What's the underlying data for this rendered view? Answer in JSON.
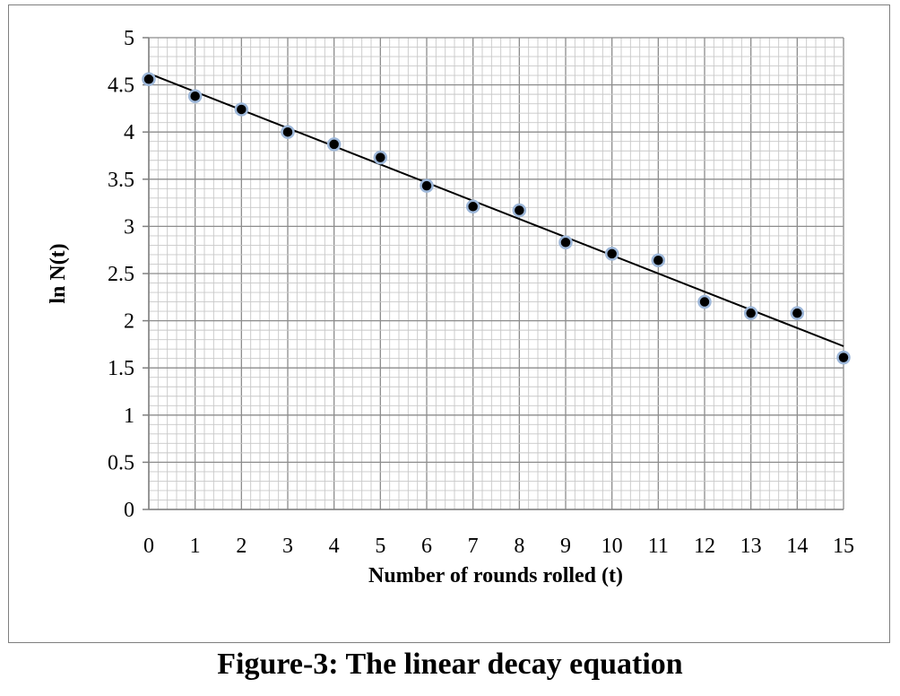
{
  "caption": "Figure-3: The linear decay equation",
  "chart_data": {
    "type": "scatter",
    "xlabel": "Number of rounds rolled (t)",
    "ylabel": "ln N(t)",
    "xlim": [
      0,
      15
    ],
    "ylim": [
      0,
      5
    ],
    "x_ticks": [
      "0",
      "1",
      "2",
      "3",
      "4",
      "5",
      "6",
      "7",
      "8",
      "9",
      "10",
      "11",
      "12",
      "13",
      "14",
      "15"
    ],
    "y_ticks": [
      "0",
      "0.5",
      "1",
      "1.5",
      "2",
      "2.5",
      "3",
      "3.5",
      "4",
      "4.5",
      "5"
    ],
    "grid": "major and minor",
    "legend": "none",
    "series": [
      {
        "x": [
          0,
          1,
          2,
          3,
          4,
          5,
          6,
          7,
          8,
          9,
          10,
          11,
          12,
          13,
          14,
          15
        ],
        "y": [
          4.56,
          4.38,
          4.24,
          4.0,
          3.87,
          3.73,
          3.43,
          3.21,
          3.17,
          2.83,
          2.71,
          2.64,
          2.2,
          2.08,
          2.08,
          1.61
        ],
        "marker_fill": "#000000",
        "marker_edge": "#9db7d9"
      }
    ],
    "trendline": {
      "type": "linear",
      "x": [
        0,
        15
      ],
      "y": [
        4.62,
        1.73
      ],
      "color": "#000000"
    }
  }
}
